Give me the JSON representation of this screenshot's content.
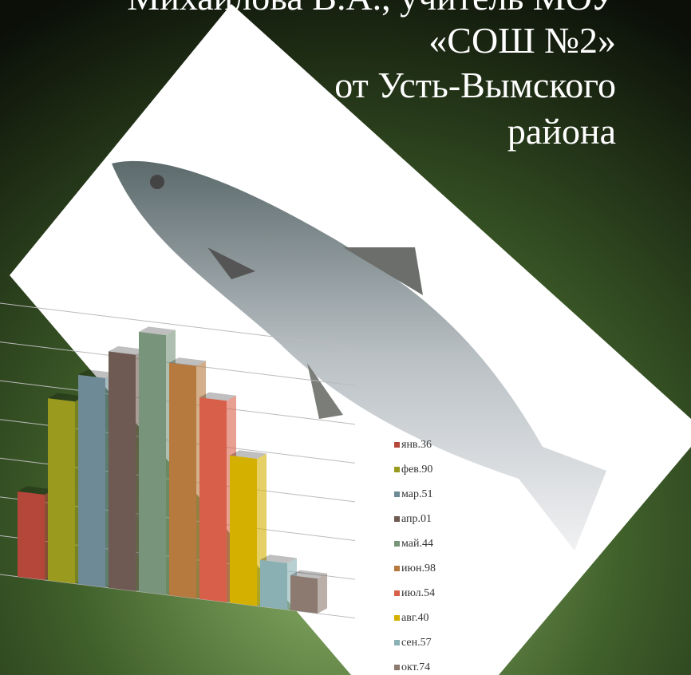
{
  "slide": {
    "title_lines": [
      "Михайлова В.А., учитель МОУ",
      "«СОШ №2»",
      "от Усть-Вымского",
      "района"
    ]
  },
  "chart_data": {
    "type": "bar",
    "categories": [
      "янв.36",
      "фев.90",
      "мар.51",
      "апр.01",
      "май.44",
      "июн.98",
      "июл.54",
      "авг.40",
      "сен.57",
      "окт.74"
    ],
    "values": [
      110,
      235,
      270,
      305,
      335,
      300,
      260,
      190,
      60,
      45
    ],
    "colors": [
      "#b5473a",
      "#9a9a1e",
      "#6e8a96",
      "#6e5a52",
      "#78947a",
      "#b67a3e",
      "#d8604a",
      "#d4b000",
      "#8ab0b4",
      "#8c7a70"
    ],
    "ylim": [
      0,
      350
    ],
    "yticks": [
      0,
      50,
      100,
      150,
      200,
      250,
      300,
      350
    ],
    "grid": true
  }
}
